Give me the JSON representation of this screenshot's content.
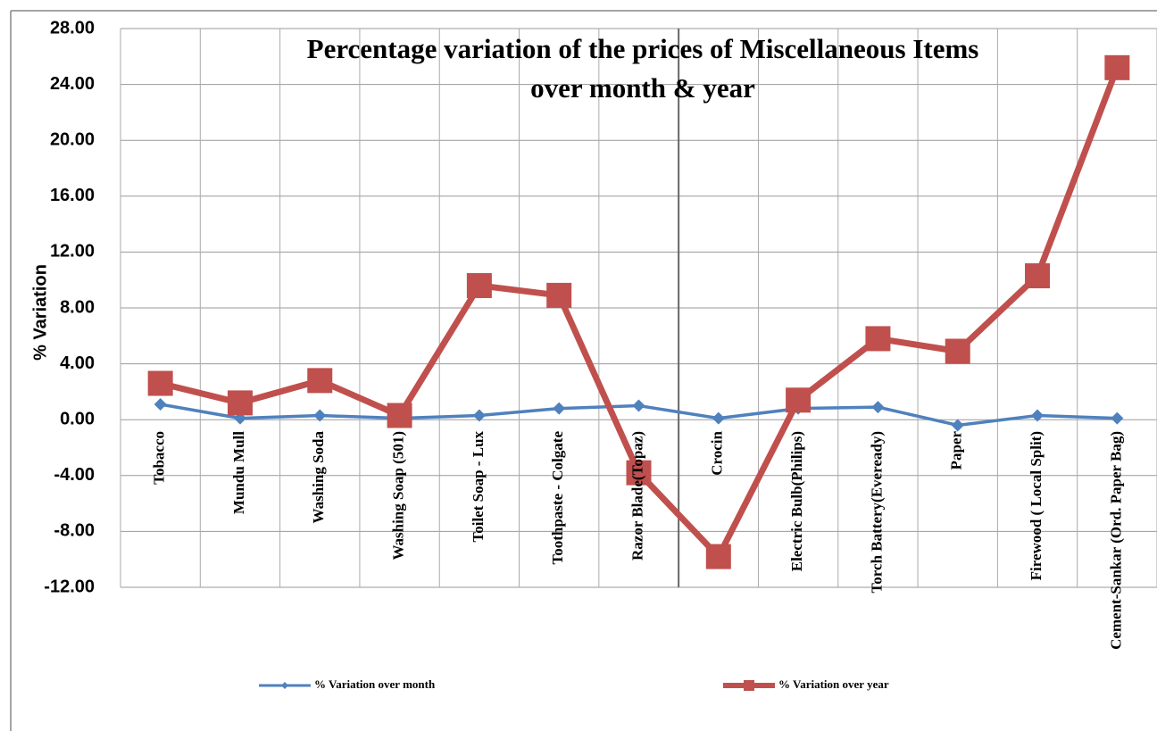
{
  "chart_data": {
    "type": "line",
    "title": [
      "Percentage variation of the prices of Miscellaneous Items",
      "over month & year"
    ],
    "y_label": "% Variation",
    "categories": [
      "Tobacco",
      "Mundu Mull",
      "Washing Soda",
      "Washing Soap (501)",
      "Toilet Soap - Lux",
      "Toothpaste - Colgate",
      "Razor Blade(Topaz)",
      "Crocin",
      "Electric Bulb(Philips)",
      "Torch Battery(Eveready)",
      "Paper",
      "Firewood ( Local Split)",
      "Cement-Sankar (Ord. Paper Bag)"
    ],
    "series": [
      {
        "name": "% Variation over month",
        "color": "#4f81bd",
        "marker": "diamond",
        "values": [
          1.1,
          0.1,
          0.3,
          0.1,
          0.3,
          0.8,
          1.0,
          0.1,
          0.8,
          0.9,
          -0.4,
          0.3,
          0.1
        ]
      },
      {
        "name": "% Variation over year",
        "color": "#c0504d",
        "marker": "square",
        "values": [
          2.6,
          1.2,
          2.8,
          0.3,
          9.6,
          8.9,
          -3.8,
          -9.8,
          1.4,
          5.8,
          4.9,
          10.3,
          25.2
        ]
      }
    ],
    "ylim": [
      -12,
      28
    ],
    "yticks": [
      {
        "value": -12,
        "label": "-12.00"
      },
      {
        "value": -8,
        "label": "-8.00"
      },
      {
        "value": -4,
        "label": "-4.00"
      },
      {
        "value": 0,
        "label": "0.00"
      },
      {
        "value": 4,
        "label": "4.00"
      },
      {
        "value": 8,
        "label": "8.00"
      },
      {
        "value": 12,
        "label": "12.00"
      },
      {
        "value": 16,
        "label": "16.00"
      },
      {
        "value": 20,
        "label": "20.00"
      },
      {
        "value": 24,
        "label": "24.00"
      },
      {
        "value": 28,
        "label": "28.00"
      }
    ],
    "grid": true,
    "legend": "bottom"
  }
}
